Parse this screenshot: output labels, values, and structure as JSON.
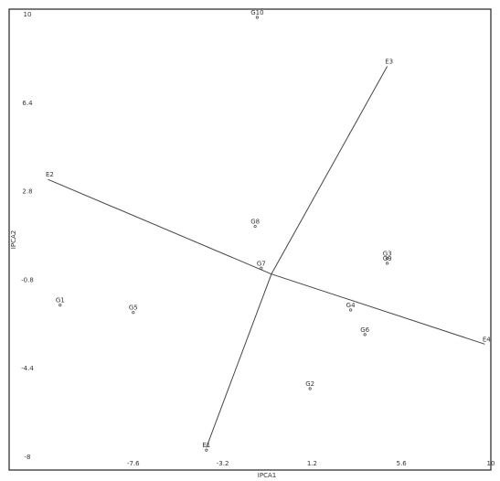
{
  "chart_data": {
    "type": "scatter",
    "title": "",
    "xlabel": "IPCA1",
    "ylabel": "IPCA2",
    "xlim": [
      -12,
      10
    ],
    "ylim": [
      -8,
      10
    ],
    "x_ticks": [
      -7.6,
      -3.2,
      1.2,
      5.6,
      10
    ],
    "x_tick_labels": [
      "-7.6",
      "-3.2",
      "1.2",
      "5.6",
      "10"
    ],
    "y_ticks": [
      -8,
      -4.4,
      -0.8,
      2.8,
      6.4,
      10
    ],
    "y_tick_labels": [
      "-8",
      "-4.4",
      "-0.8",
      "2.8",
      "6.4",
      "10"
    ],
    "origin": [
      -0.8,
      -0.55
    ],
    "points": [
      {
        "label": "G10",
        "x": -1.5,
        "y": 10.0
      },
      {
        "label": "G8",
        "x": -1.6,
        "y": 1.5
      },
      {
        "label": "G7",
        "x": -1.3,
        "y": -0.2
      },
      {
        "label": "G3",
        "x": 4.9,
        "y": 0.2
      },
      {
        "label": "G9",
        "x": 4.9,
        "y": 0.0
      },
      {
        "label": "G1",
        "x": -11.2,
        "y": -1.7
      },
      {
        "label": "G5",
        "x": -7.6,
        "y": -2.0
      },
      {
        "label": "G4",
        "x": 3.1,
        "y": -1.9
      },
      {
        "label": "G6",
        "x": 3.8,
        "y": -2.9
      },
      {
        "label": "G2",
        "x": 1.1,
        "y": -5.1
      },
      {
        "label": "E1",
        "x": -4.0,
        "y": -7.6
      }
    ],
    "environments": [
      {
        "label": "E3",
        "x": 4.9,
        "y": 7.9
      },
      {
        "label": "E2",
        "x": -11.8,
        "y": 3.3
      },
      {
        "label": "E4",
        "x": 9.7,
        "y": -3.4
      },
      {
        "label": "E1",
        "x": -4.0,
        "y": -7.6
      }
    ],
    "grid": false
  }
}
